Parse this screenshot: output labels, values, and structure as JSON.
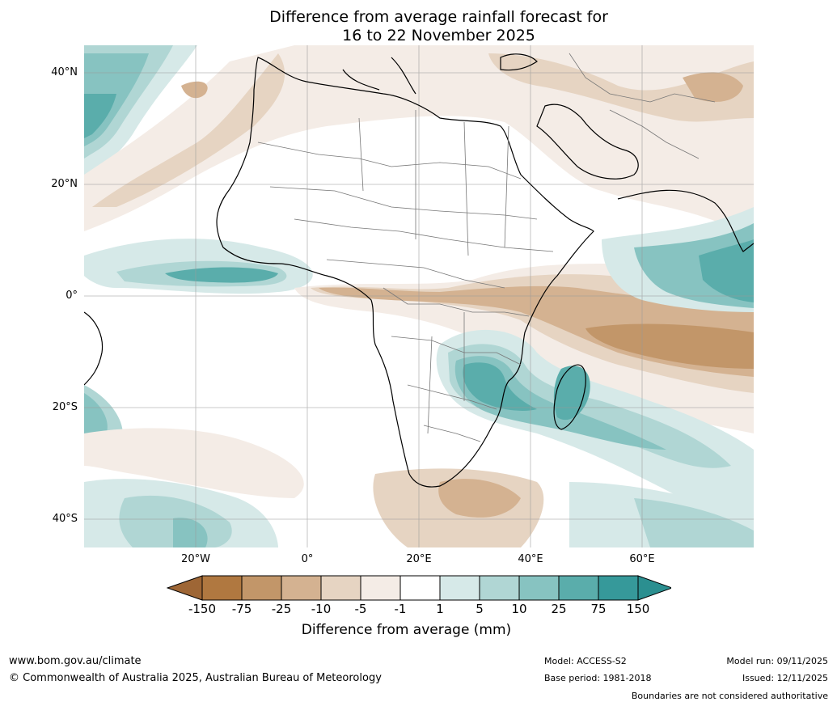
{
  "title": {
    "line1": "Difference from average rainfall forecast for",
    "line2": "16 to 22 November 2025"
  },
  "axes": {
    "lat_labels": [
      "40°N",
      "20°N",
      "0°",
      "20°S",
      "40°S"
    ],
    "lon_labels": [
      "20°W",
      "0°",
      "20°E",
      "40°E",
      "60°E"
    ]
  },
  "legend": {
    "title": "Difference from average (mm)",
    "ticks": [
      "-150",
      "-75",
      "-25",
      "-10",
      "-5",
      "-1",
      "1",
      "5",
      "10",
      "25",
      "75",
      "150"
    ],
    "colors": [
      "#9e6635",
      "#b07840",
      "#c29669",
      "#d4b291",
      "#e6d4c2",
      "#f4ece6",
      "#ffffff",
      "#d6e9e8",
      "#b0d6d4",
      "#87c3c1",
      "#5aadab",
      "#36999a",
      "#2b8f90"
    ]
  },
  "footer": {
    "website": "www.bom.gov.au/climate",
    "copyright": "© Commonwealth of Australia 2025, Australian Bureau of Meteorology",
    "model": "Model: ACCESS-S2",
    "base_period": "Base period: 1981-2018",
    "model_run": "Model run: 09/11/2025",
    "issued": "Issued: 12/11/2025",
    "disclaimer": "Boundaries are not considered authoritative"
  }
}
